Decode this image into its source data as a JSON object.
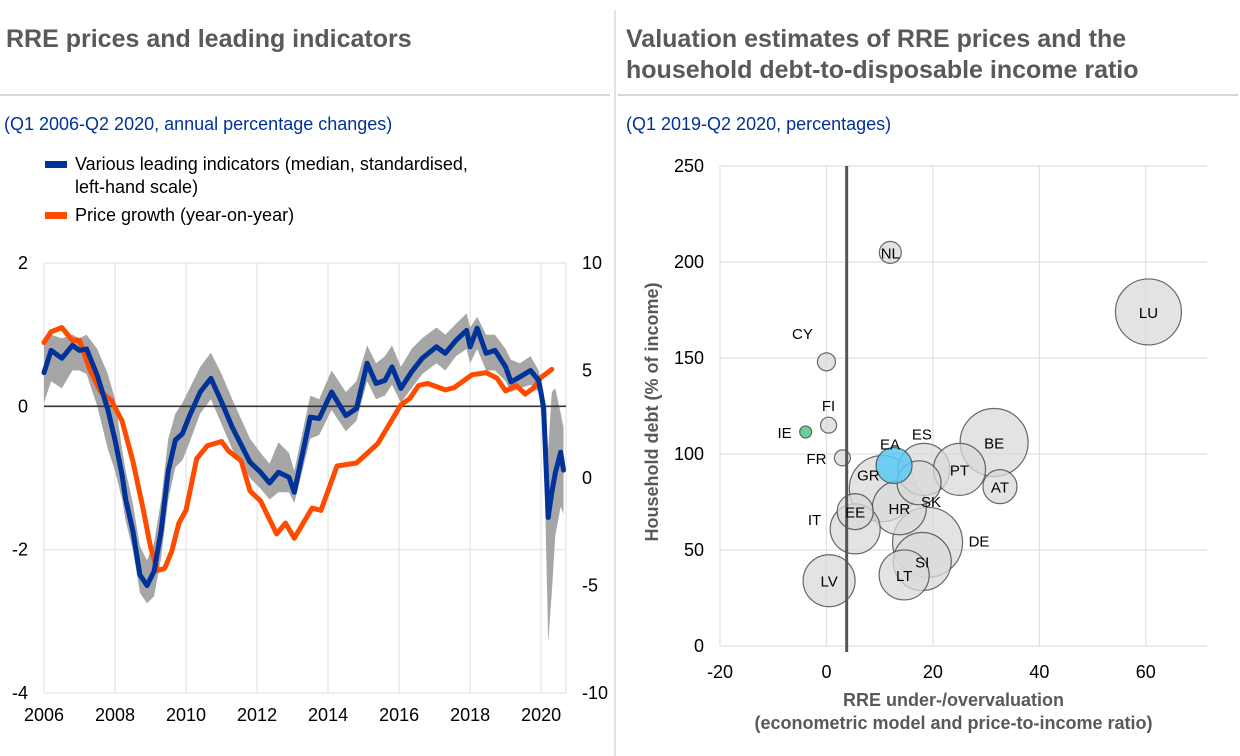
{
  "left_panel": {
    "title": "RRE prices and leading indicators",
    "subtitle": "(Q1 2006-Q2 2020, annual percentage changes)"
  },
  "right_panel": {
    "title_line1": "Valuation estimates of RRE prices and the",
    "title_line2": "household debt-to-disposable income ratio",
    "subtitle": "(Q1 2019-Q2 2020, percentages)"
  },
  "colors": {
    "title": "#595959",
    "subtitle": "#003299",
    "blue_series": "#003299",
    "orange_series": "#ff4b00",
    "band": "#a6a6a6",
    "bubble": "#d9d9d9",
    "bubble_ea": "#5ac8f5",
    "bubble_ie": "#6ccf96"
  },
  "chart_data": [
    {
      "type": "line",
      "title": "RRE prices and leading indicators",
      "legend": [
        {
          "label_line1": "Various leading indicators (median, standardised,",
          "label_line2": "left-hand scale)",
          "color": "#003299"
        },
        {
          "label_line1": "Price growth (year-on-year)",
          "label_line2": "",
          "color": "#ff4b00"
        }
      ],
      "legend_position": "top-left",
      "xlim": [
        2006,
        2020.7
      ],
      "x_ticks": [
        "2006",
        "2008",
        "2010",
        "2012",
        "2014",
        "2016",
        "2018",
        "2020"
      ],
      "x_tick_values": [
        2006,
        2008,
        2010,
        2012,
        2014,
        2016,
        2018,
        2020
      ],
      "ylim_left": [
        -4,
        2
      ],
      "y_ticks_left": [
        "2",
        "0",
        "-2",
        "-4"
      ],
      "y_tick_values_left": [
        2,
        0,
        -2,
        -4
      ],
      "ylim_right": [
        -10,
        10
      ],
      "y_ticks_right": [
        "10",
        "5",
        "0",
        "-5",
        "-10"
      ],
      "y_tick_values_right": [
        10,
        5,
        0,
        -5,
        -10
      ],
      "grid": "vertical and horizontal",
      "series": [
        {
          "name": "Various leading indicators (median, standardised, left-hand scale)",
          "axis": "left",
          "x": [
            2006.0,
            2006.2,
            2006.5,
            2006.8,
            2007.0,
            2007.2,
            2007.5,
            2007.8,
            2008.0,
            2008.2,
            2008.3,
            2008.5,
            2008.7,
            2008.9,
            2009.1,
            2009.3,
            2009.5,
            2009.7,
            2009.9,
            2010.1,
            2010.4,
            2010.7,
            2011.0,
            2011.3,
            2011.8,
            2012.1,
            2012.35,
            2012.6,
            2012.9,
            2013.05,
            2013.5,
            2013.75,
            2014.1,
            2014.5,
            2014.8,
            2015.1,
            2015.35,
            2015.6,
            2015.8,
            2016.05,
            2016.35,
            2016.65,
            2017.05,
            2017.3,
            2017.6,
            2017.9,
            2018.0,
            2018.2,
            2018.45,
            2018.7,
            2019.0,
            2019.15,
            2019.4,
            2019.7,
            2019.93,
            2020.07,
            2020.2,
            2020.3,
            2020.4,
            2020.55,
            2020.63
          ],
          "y": [
            0.47,
            0.78,
            0.67,
            0.85,
            0.78,
            0.8,
            0.43,
            -0.05,
            -0.47,
            -0.96,
            -1.3,
            -1.73,
            -2.35,
            -2.5,
            -2.3,
            -1.73,
            -0.9,
            -0.47,
            -0.38,
            -0.13,
            0.2,
            0.39,
            0.06,
            -0.29,
            -0.78,
            -0.92,
            -1.07,
            -0.92,
            -0.99,
            -1.2,
            -0.15,
            -0.17,
            0.2,
            -0.13,
            -0.03,
            0.6,
            0.32,
            0.36,
            0.55,
            0.25,
            0.48,
            0.67,
            0.83,
            0.74,
            0.92,
            1.06,
            0.83,
            1.09,
            0.74,
            0.78,
            0.55,
            0.34,
            0.41,
            0.5,
            0.36,
            -0.01,
            -1.55,
            -1.2,
            -0.93,
            -0.64,
            -0.89
          ],
          "band_lower": [
            0.05,
            0.35,
            0.25,
            0.5,
            0.5,
            0.45,
            0.0,
            -0.6,
            -0.9,
            -1.3,
            -1.6,
            -2.0,
            -2.6,
            -2.75,
            -2.65,
            -2.1,
            -1.3,
            -0.85,
            -0.75,
            -0.5,
            -0.1,
            0.1,
            -0.25,
            -0.6,
            -1.0,
            -1.15,
            -1.3,
            -1.2,
            -1.2,
            -1.35,
            -0.45,
            -0.4,
            -0.05,
            -0.35,
            -0.2,
            0.35,
            0.1,
            0.15,
            0.3,
            0.05,
            0.25,
            0.45,
            0.6,
            0.5,
            0.7,
            0.8,
            0.6,
            0.8,
            0.5,
            0.5,
            0.35,
            0.2,
            0.25,
            0.3,
            0.2,
            -0.4,
            -3.3,
            -2.6,
            -1.8,
            -1.4,
            -1.5
          ],
          "band_upper": [
            0.9,
            1.0,
            0.95,
            1.0,
            0.95,
            1.0,
            0.8,
            0.45,
            0.1,
            -0.6,
            -0.9,
            -1.35,
            -1.95,
            -2.15,
            -1.9,
            -1.3,
            -0.45,
            -0.1,
            0.05,
            0.25,
            0.55,
            0.75,
            0.45,
            0.1,
            -0.45,
            -0.65,
            -0.8,
            -0.5,
            -0.65,
            -0.9,
            0.15,
            0.1,
            0.5,
            0.2,
            0.35,
            0.85,
            0.6,
            0.7,
            0.85,
            0.55,
            0.8,
            0.95,
            1.1,
            1.0,
            1.15,
            1.3,
            1.1,
            1.25,
            1.0,
            1.0,
            0.8,
            0.65,
            0.6,
            0.7,
            0.5,
            0.2,
            -0.6,
            0.2,
            0.25,
            -0.1,
            -0.3
          ]
        },
        {
          "name": "Price growth (year-on-year)",
          "axis": "right",
          "x": [
            2006.0,
            2006.2,
            2006.5,
            2006.8,
            2007.0,
            2007.3,
            2007.6,
            2007.9,
            2008.2,
            2008.5,
            2008.8,
            2009.0,
            2009.2,
            2009.4,
            2009.6,
            2009.8,
            2010.0,
            2010.3,
            2010.6,
            2011.0,
            2011.2,
            2011.55,
            2011.8,
            2012.1,
            2012.55,
            2012.8,
            2013.05,
            2013.55,
            2013.8,
            2014.25,
            2014.8,
            2015.4,
            2016.05,
            2016.3,
            2016.55,
            2016.8,
            2017.3,
            2017.55,
            2018.05,
            2018.45,
            2018.75,
            2019.0,
            2019.3,
            2019.55,
            2019.8,
            2019.98,
            2020.3
          ],
          "y": [
            6.3,
            6.8,
            7.0,
            6.4,
            6.4,
            5.0,
            4.0,
            3.6,
            2.65,
            0.8,
            -1.5,
            -3.2,
            -4.3,
            -4.2,
            -3.4,
            -2.1,
            -1.5,
            0.9,
            1.5,
            1.7,
            1.25,
            0.8,
            -0.6,
            -1.07,
            -2.6,
            -2.1,
            -2.8,
            -1.4,
            -1.5,
            0.56,
            0.7,
            1.6,
            3.4,
            3.7,
            4.3,
            4.4,
            4.1,
            4.2,
            4.8,
            4.9,
            4.65,
            4.05,
            4.3,
            3.9,
            4.2,
            4.65,
            5.05
          ]
        }
      ]
    },
    {
      "type": "scatter",
      "subtype": "bubble",
      "title": "Valuation estimates of RRE prices and the household debt-to-disposable income ratio",
      "xlabel_line1": "RRE under-/overvaluation",
      "xlabel_line2": "(econometric model and price-to-income ratio)",
      "ylabel": "Household debt (% of income)",
      "xlim": [
        -20,
        71.5
      ],
      "ylim": [
        0,
        250
      ],
      "x_ticks": [
        "-20",
        "0",
        "20",
        "40",
        "60"
      ],
      "x_tick_values": [
        -20,
        0,
        20,
        40,
        60
      ],
      "y_ticks": [
        "250",
        "200",
        "150",
        "100",
        "50",
        "0"
      ],
      "y_tick_values": [
        250,
        200,
        150,
        100,
        50,
        0
      ],
      "reference_line_x": 3.8,
      "grid": "vertical and horizontal",
      "points": [
        {
          "label": "NL",
          "x": 12.0,
          "y": 205,
          "size": 11,
          "label_pos": "center"
        },
        {
          "label": "LU",
          "x": 60.5,
          "y": 174,
          "size": 33,
          "label_pos": "center"
        },
        {
          "label": "CY",
          "x": 0.0,
          "y": 148,
          "size": 9,
          "label_pos": "above-left"
        },
        {
          "label": "IE",
          "x": -3.9,
          "y": 111.5,
          "size": 6,
          "label_pos": "left",
          "highlight": "ie"
        },
        {
          "label": "FI",
          "x": 0.4,
          "y": 115,
          "size": 8,
          "label_pos": "above"
        },
        {
          "label": "FR",
          "x": 3.0,
          "y": 98,
          "size": 8,
          "label_pos": "left"
        },
        {
          "label": "BE",
          "x": 31.5,
          "y": 106,
          "size": 34,
          "label_pos": "center"
        },
        {
          "label": "GR",
          "x": 10.5,
          "y": 82,
          "size": 33,
          "label_pos": "upper-left"
        },
        {
          "label": "ES",
          "x": 18.3,
          "y": 92,
          "size": 26,
          "label_pos": "above"
        },
        {
          "label": "SK",
          "x": 17.4,
          "y": 85,
          "size": 22,
          "label_pos": "lower-right"
        },
        {
          "label": "PT",
          "x": 25.0,
          "y": 92,
          "size": 26,
          "label_pos": "center"
        },
        {
          "label": "AT",
          "x": 32.6,
          "y": 83,
          "size": 17,
          "label_pos": "center"
        },
        {
          "label": "IT",
          "x": 5.4,
          "y": 61,
          "size": 25,
          "label_pos": "left"
        },
        {
          "label": "EE",
          "x": 5.4,
          "y": 70,
          "size": 18,
          "label_pos": "center"
        },
        {
          "label": "HR",
          "x": 13.7,
          "y": 72,
          "size": 27,
          "label_pos": "center"
        },
        {
          "label": "DE",
          "x": 19.0,
          "y": 54,
          "size": 35,
          "label_pos": "right"
        },
        {
          "label": "SI",
          "x": 18.0,
          "y": 44,
          "size": 29,
          "label_pos": "center"
        },
        {
          "label": "LT",
          "x": 14.6,
          "y": 37,
          "size": 25,
          "label_pos": "center"
        },
        {
          "label": "LV",
          "x": 0.5,
          "y": 34,
          "size": 26,
          "label_pos": "center"
        },
        {
          "label": "EA",
          "x": 12.7,
          "y": 94,
          "size": 18,
          "label_pos": "above",
          "highlight": "ea"
        }
      ]
    }
  ]
}
